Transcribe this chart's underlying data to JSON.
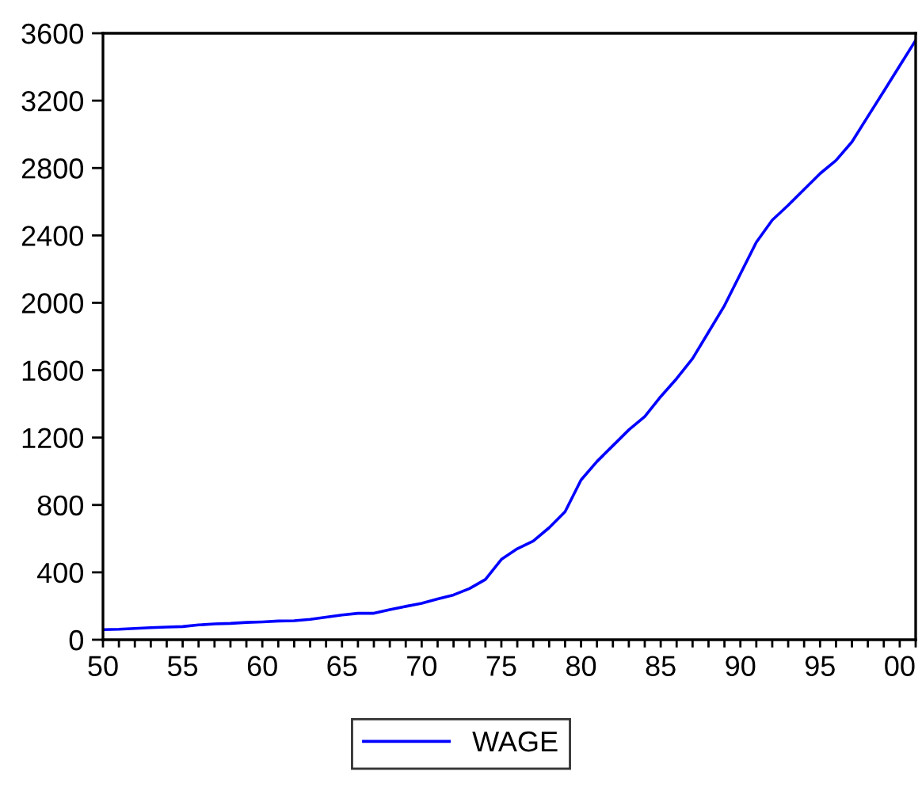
{
  "chart_data": {
    "type": "line",
    "x": [
      1950,
      1951,
      1952,
      1953,
      1954,
      1955,
      1956,
      1957,
      1958,
      1959,
      1960,
      1961,
      1962,
      1963,
      1964,
      1965,
      1966,
      1967,
      1968,
      1969,
      1970,
      1971,
      1972,
      1973,
      1974,
      1975,
      1976,
      1977,
      1978,
      1979,
      1980,
      1981,
      1982,
      1983,
      1984,
      1985,
      1986,
      1987,
      1988,
      1989,
      1990,
      1991,
      1992,
      1993,
      1994,
      1995,
      1996,
      1997,
      1998,
      1999,
      2000,
      2001
    ],
    "series": [
      {
        "name": "WAGE",
        "color": "#0000ff",
        "values": [
          60,
          62,
          67,
          72,
          75,
          78,
          88,
          94,
          97,
          103,
          106,
          111,
          113,
          121,
          134,
          147,
          157,
          157,
          179,
          198,
          216,
          242,
          266,
          304,
          358,
          477,
          540,
          586,
          665,
          760,
          948,
          1058,
          1152,
          1246,
          1325,
          1443,
          1550,
          1669,
          1826,
          1983,
          2171,
          2359,
          2491,
          2579,
          2673,
          2767,
          2845,
          2955,
          3106,
          3256,
          3407,
          3558
        ]
      }
    ],
    "xlim": [
      1950,
      2001
    ],
    "ylim": [
      0,
      3600
    ],
    "xticks": [
      {
        "value": 1950,
        "label": "50"
      },
      {
        "value": 1951,
        "label": null
      },
      {
        "value": 1952,
        "label": null
      },
      {
        "value": 1953,
        "label": null
      },
      {
        "value": 1954,
        "label": null
      },
      {
        "value": 1955,
        "label": "55"
      },
      {
        "value": 1956,
        "label": null
      },
      {
        "value": 1957,
        "label": null
      },
      {
        "value": 1958,
        "label": null
      },
      {
        "value": 1959,
        "label": null
      },
      {
        "value": 1960,
        "label": "60"
      },
      {
        "value": 1961,
        "label": null
      },
      {
        "value": 1962,
        "label": null
      },
      {
        "value": 1963,
        "label": null
      },
      {
        "value": 1964,
        "label": null
      },
      {
        "value": 1965,
        "label": "65"
      },
      {
        "value": 1966,
        "label": null
      },
      {
        "value": 1967,
        "label": null
      },
      {
        "value": 1968,
        "label": null
      },
      {
        "value": 1969,
        "label": null
      },
      {
        "value": 1970,
        "label": "70"
      },
      {
        "value": 1971,
        "label": null
      },
      {
        "value": 1972,
        "label": null
      },
      {
        "value": 1973,
        "label": null
      },
      {
        "value": 1974,
        "label": null
      },
      {
        "value": 1975,
        "label": "75"
      },
      {
        "value": 1976,
        "label": null
      },
      {
        "value": 1977,
        "label": null
      },
      {
        "value": 1978,
        "label": null
      },
      {
        "value": 1979,
        "label": null
      },
      {
        "value": 1980,
        "label": "80"
      },
      {
        "value": 1981,
        "label": null
      },
      {
        "value": 1982,
        "label": null
      },
      {
        "value": 1983,
        "label": null
      },
      {
        "value": 1984,
        "label": null
      },
      {
        "value": 1985,
        "label": "85"
      },
      {
        "value": 1986,
        "label": null
      },
      {
        "value": 1987,
        "label": null
      },
      {
        "value": 1988,
        "label": null
      },
      {
        "value": 1989,
        "label": null
      },
      {
        "value": 1990,
        "label": "90"
      },
      {
        "value": 1991,
        "label": null
      },
      {
        "value": 1992,
        "label": null
      },
      {
        "value": 1993,
        "label": null
      },
      {
        "value": 1994,
        "label": null
      },
      {
        "value": 1995,
        "label": "95"
      },
      {
        "value": 1996,
        "label": null
      },
      {
        "value": 1997,
        "label": null
      },
      {
        "value": 1998,
        "label": null
      },
      {
        "value": 1999,
        "label": null
      },
      {
        "value": 2000,
        "label": "00"
      },
      {
        "value": 2001,
        "label": null
      }
    ],
    "yticks": [
      0,
      400,
      800,
      1200,
      1600,
      2000,
      2400,
      2800,
      3200,
      3600
    ],
    "legend": "bottom",
    "grid": false,
    "marker": "none",
    "line_style": "solid"
  }
}
